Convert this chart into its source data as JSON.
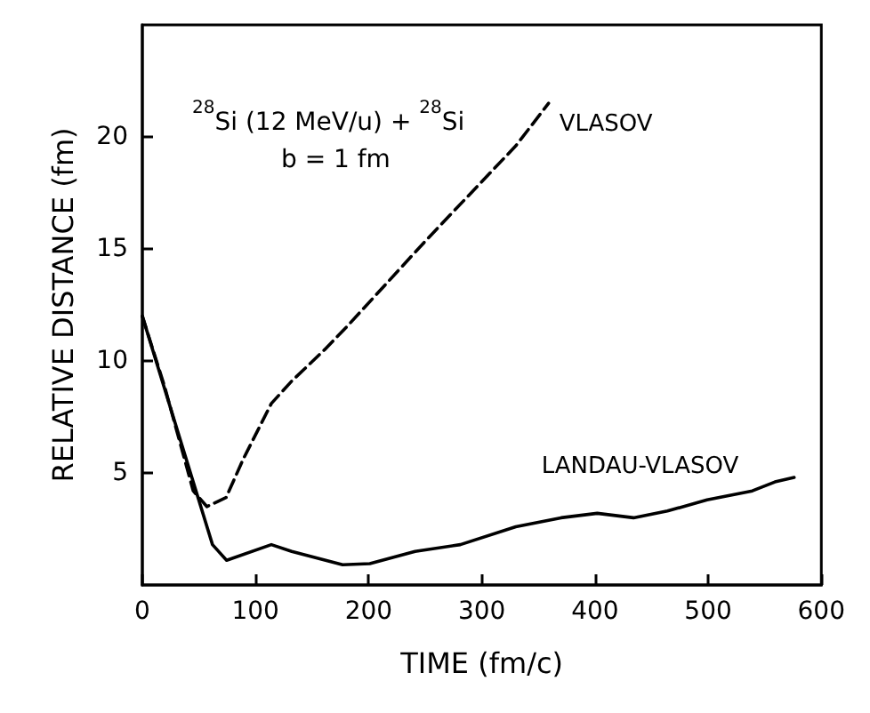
{
  "chart_data": {
    "type": "line",
    "xlabel": "TIME (fm/c)",
    "ylabel": "RELATIVE DISTANCE (fm)",
    "xlim": [
      0,
      600
    ],
    "xticks": [
      0,
      100,
      200,
      300,
      400,
      500,
      600
    ],
    "ylim": [
      0,
      25
    ],
    "yticks": [
      5,
      10,
      15,
      20
    ],
    "grid": false,
    "legend": false,
    "marker": "none",
    "annotations": [
      "$^{28}$Si (12 MeV/u) + $^{28}$Si",
      "b = 1 fm"
    ],
    "series": [
      {
        "name": "VLASOV",
        "color": "#000000",
        "line_style": "dashed",
        "x": [
          0,
          20,
          45,
          57,
          74,
          89,
          114,
          132,
          161,
          182,
          251,
          330,
          359
        ],
        "values": [
          12,
          8.8,
          4.2,
          3.5,
          3.9,
          5.6,
          8.1,
          9.1,
          10.5,
          11.6,
          15.4,
          19.6,
          21.5
        ]
      },
      {
        "name": "LANDAU-VLASOV",
        "color": "#000000",
        "line_style": "solid",
        "x": [
          0,
          62,
          74.5,
          114,
          132,
          177,
          201,
          241,
          281,
          330,
          370,
          402,
          434,
          464,
          499,
          539,
          559,
          576
        ],
        "values": [
          12,
          1.8,
          1.1,
          1.8,
          1.5,
          0.9,
          0.95,
          1.5,
          1.8,
          2.6,
          3.0,
          3.2,
          3.0,
          3.3,
          3.8,
          4.2,
          4.6,
          4.8
        ]
      }
    ]
  }
}
